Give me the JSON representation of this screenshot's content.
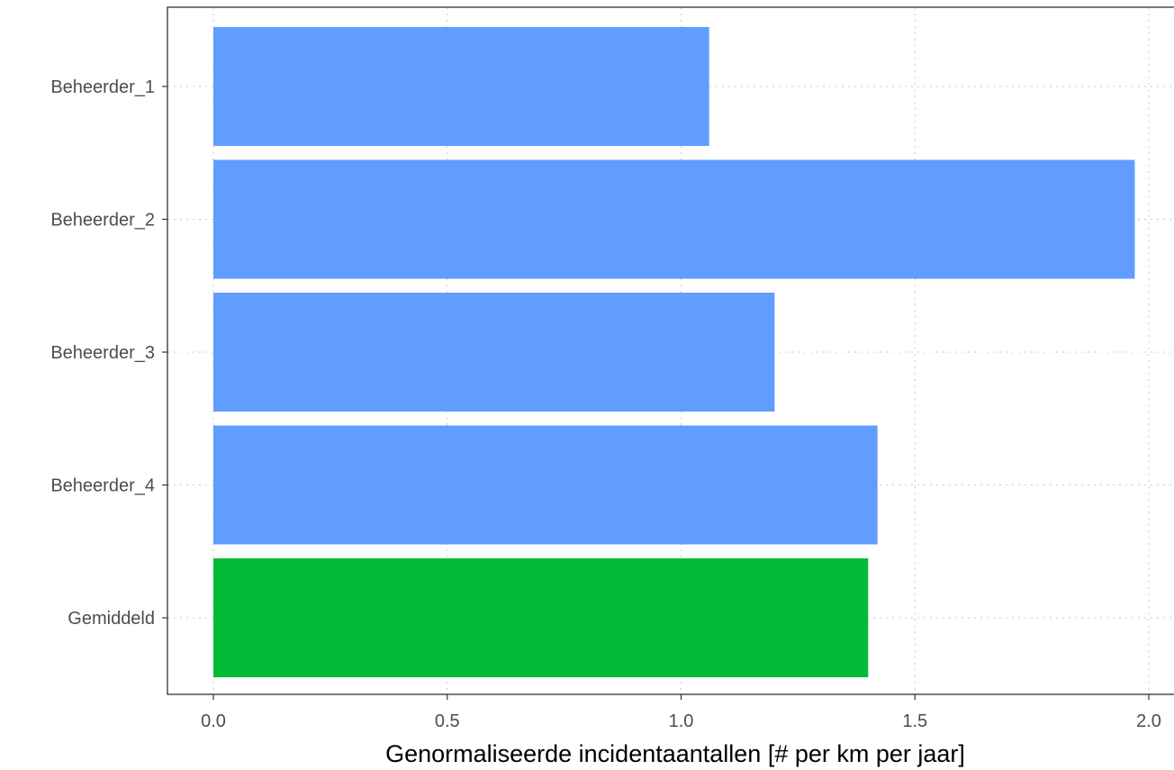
{
  "chart_data": {
    "type": "bar",
    "orientation": "horizontal",
    "title": "",
    "xlabel": "Genormaliseerde incidentaantallen [# per km per jaar]",
    "ylabel": "",
    "categories": [
      "Beheerder_1",
      "Beheerder_2",
      "Beheerder_3",
      "Beheerder_4",
      "Gemiddeld"
    ],
    "values": [
      1.06,
      1.97,
      1.2,
      1.42,
      1.4
    ],
    "bar_colors": [
      "#619cff",
      "#619cff",
      "#619cff",
      "#619cff",
      "#00ba38"
    ],
    "xlim": [
      -0.1,
      2.05
    ],
    "xticks": [
      0.0,
      0.5,
      1.0,
      1.5,
      2.0
    ],
    "xtick_labels": [
      "0.0",
      "0.5",
      "1.0",
      "1.5",
      "2.0"
    ],
    "grid": true,
    "grid_style": "dotted",
    "legend": "none"
  }
}
